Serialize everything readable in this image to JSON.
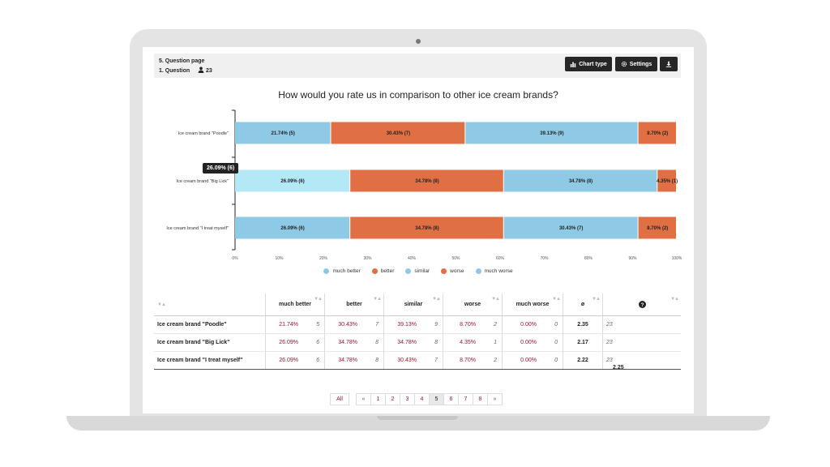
{
  "header": {
    "page_label": "5. Question page",
    "question_label": "1. Question",
    "respondents": "23",
    "buttons": {
      "chart_type": "Chart type",
      "settings": "Settings"
    }
  },
  "chart_data": {
    "type": "bar",
    "orientation": "horizontal",
    "stacked": true,
    "title": "How would you rate us in comparison to other ice cream brands?",
    "categories": [
      "Ice cream brand \"Poodle\"",
      "Ice cream brand \"Big Lick\"",
      "Ice cream brand \"I treat myself\""
    ],
    "series": [
      {
        "name": "much better",
        "color": "#8ecae6",
        "values": [
          21.74,
          26.09,
          26.09
        ],
        "counts": [
          5,
          6,
          6
        ],
        "labels": [
          "21.74% (5)",
          "26.09% (6)",
          "26.09% (6)"
        ]
      },
      {
        "name": "better",
        "color": "#e07044",
        "values": [
          30.43,
          34.78,
          34.78
        ],
        "counts": [
          7,
          8,
          8
        ],
        "labels": [
          "30.43% (7)",
          "34.78% (8)",
          "34.78% (8)"
        ]
      },
      {
        "name": "similar",
        "color": "#8ecae6",
        "values": [
          39.13,
          34.78,
          30.43
        ],
        "counts": [
          9,
          8,
          7
        ],
        "labels": [
          "39.13% (9)",
          "34.78% (8)",
          "30.43% (7)"
        ]
      },
      {
        "name": "worse",
        "color": "#e07044",
        "values": [
          8.7,
          4.35,
          8.7
        ],
        "counts": [
          2,
          1,
          2
        ],
        "labels": [
          "8.70% (2)",
          "4.35% (1)",
          "8.70% (2)"
        ]
      },
      {
        "name": "much worse",
        "color": "#8ecae6",
        "values": [
          0,
          0,
          0
        ],
        "counts": [
          0,
          0,
          0
        ],
        "labels": [
          "",
          "",
          ""
        ]
      }
    ],
    "x_ticks": [
      "0%",
      "10%",
      "20%",
      "30%",
      "40%",
      "50%",
      "60%",
      "70%",
      "80%",
      "90%",
      "100%"
    ],
    "xlim": [
      0,
      100
    ],
    "legend_position": "bottom",
    "highlight_color": "#b3e8f7",
    "tooltip": "26.09% (6)"
  },
  "table": {
    "columns": [
      "much better",
      "better",
      "similar",
      "worse",
      "much worse",
      "ø",
      "?"
    ],
    "rows": [
      {
        "name": "Ice cream brand \"Poodle\"",
        "cells": [
          [
            "21.74%",
            "5"
          ],
          [
            "30.43%",
            "7"
          ],
          [
            "39.13%",
            "9"
          ],
          [
            "8.70%",
            "2"
          ],
          [
            "0.00%",
            "0"
          ]
        ],
        "avg": "2.35",
        "n": "23"
      },
      {
        "name": "Ice cream brand \"Big Lick\"",
        "cells": [
          [
            "26.09%",
            "6"
          ],
          [
            "34.78%",
            "8"
          ],
          [
            "34.78%",
            "8"
          ],
          [
            "4.35%",
            "1"
          ],
          [
            "0.00%",
            "0"
          ]
        ],
        "avg": "2.17",
        "n": "23"
      },
      {
        "name": "Ice cream brand \"I treat myself\"",
        "cells": [
          [
            "26.09%",
            "6"
          ],
          [
            "34.78%",
            "8"
          ],
          [
            "30.43%",
            "7"
          ],
          [
            "8.70%",
            "2"
          ],
          [
            "0.00%",
            "0"
          ]
        ],
        "avg": "2.22",
        "n": "23"
      }
    ],
    "total_avg": "2.25"
  },
  "pagination": {
    "all_label": "All",
    "prev": "«",
    "next": "»",
    "pages": [
      "1",
      "2",
      "3",
      "4",
      "5",
      "6",
      "7",
      "8"
    ],
    "active": "5"
  }
}
